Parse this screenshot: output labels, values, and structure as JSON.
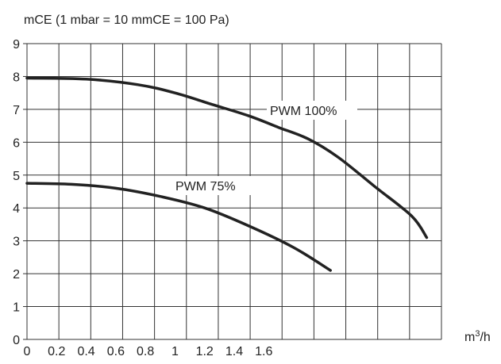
{
  "chart_data": {
    "type": "line",
    "ylabel": "mCE (1 mbar = 10 mmCE = 100 Pa)",
    "xlabel_base": "m",
    "xlabel_sup": "3",
    "xlabel_tail": "/h",
    "ylim": [
      0,
      9
    ],
    "xlim": [
      0,
      2.8
    ],
    "y_ticks": [
      "0",
      "1",
      "2",
      "3",
      "4",
      "5",
      "6",
      "7",
      "8",
      "9"
    ],
    "x_ticks": [
      {
        "value": 0,
        "label": "0"
      },
      {
        "value": 0.2,
        "label": "0.2"
      },
      {
        "value": 0.4,
        "label": "0.4"
      },
      {
        "value": 0.6,
        "label": "0.6"
      },
      {
        "value": 0.8,
        "label": "0.8"
      },
      {
        "value": 1.0,
        "label": "1"
      },
      {
        "value": 1.2,
        "label": "1.2"
      },
      {
        "value": 1.4,
        "label": "1.4"
      },
      {
        "value": 1.6,
        "label": "1.6"
      }
    ],
    "grid": true,
    "series": [
      {
        "name": "PWM 100%",
        "x": [
          0,
          0.4,
          0.75,
          1.0,
          1.25,
          1.5,
          1.7,
          1.9,
          2.1,
          2.35,
          2.6,
          2.7
        ],
        "y": [
          7.95,
          7.92,
          7.75,
          7.5,
          7.15,
          6.8,
          6.45,
          6.1,
          5.55,
          4.65,
          3.75,
          3.1
        ]
      },
      {
        "name": "PWM 75%",
        "x": [
          0,
          0.3,
          0.6,
          0.9,
          1.2,
          1.5,
          1.8,
          2.05
        ],
        "y": [
          4.75,
          4.72,
          4.6,
          4.35,
          4.0,
          3.45,
          2.8,
          2.1
        ]
      }
    ],
    "style": {
      "line_color": "#222222",
      "grid_color": "#333333",
      "label_bg": "#ffffff"
    }
  }
}
